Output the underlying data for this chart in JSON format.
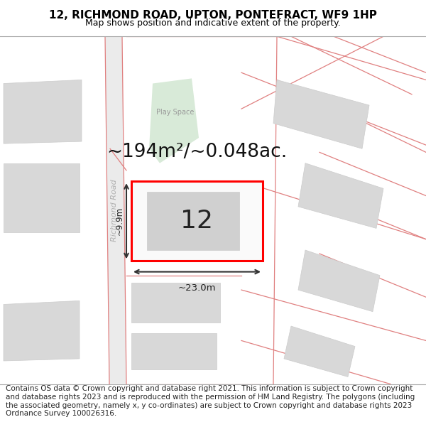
{
  "title_line1": "12, RICHMOND ROAD, UPTON, PONTEFRACT, WF9 1HP",
  "title_line2": "Map shows position and indicative extent of the property.",
  "footer_text": "Contains OS data © Crown copyright and database right 2021. This information is subject to Crown copyright and database rights 2023 and is reproduced with the permission of HM Land Registry. The polygons (including the associated geometry, namely x, y co-ordinates) are subject to Crown copyright and database rights 2023 Ordnance Survey 100026316.",
  "area_text": "~194m²/~0.048ac.",
  "width_text": "~23.0m",
  "height_text": "~9.9m",
  "number_text": "12",
  "road_label": "Richmond Road",
  "play_space_label": "Play Space",
  "title_fontsize": 11,
  "subtitle_fontsize": 9,
  "footer_fontsize": 7.5,
  "area_fontsize": 19,
  "number_fontsize": 26
}
